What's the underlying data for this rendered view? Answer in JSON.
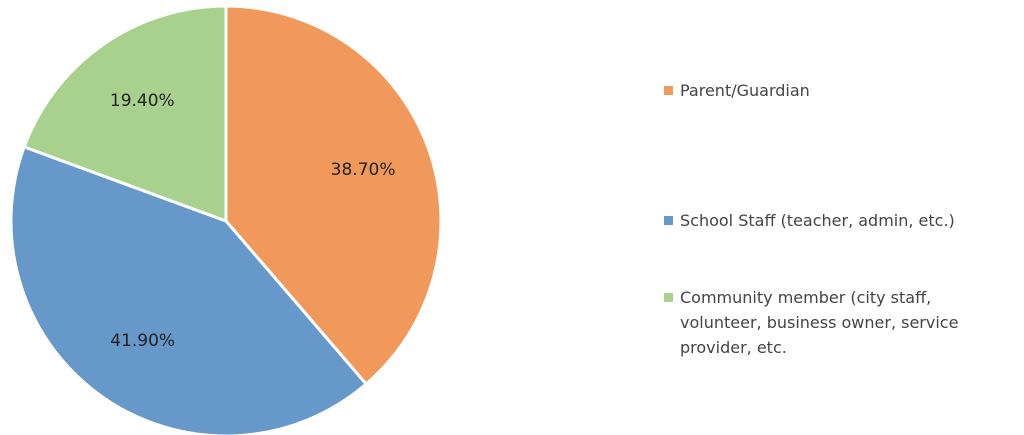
{
  "chart_data": {
    "type": "pie",
    "categories": [
      "Parent/Guardian",
      "School Staff (teacher, admin, etc.)",
      "Community member (city staff, volunteer, business owner, service provider, etc."
    ],
    "values": [
      38.7,
      41.9,
      19.4
    ],
    "value_labels": [
      "38.70%",
      "41.90%",
      "19.40%"
    ],
    "colors": [
      "#f0995a",
      "#6699c9",
      "#a9d18e"
    ]
  }
}
